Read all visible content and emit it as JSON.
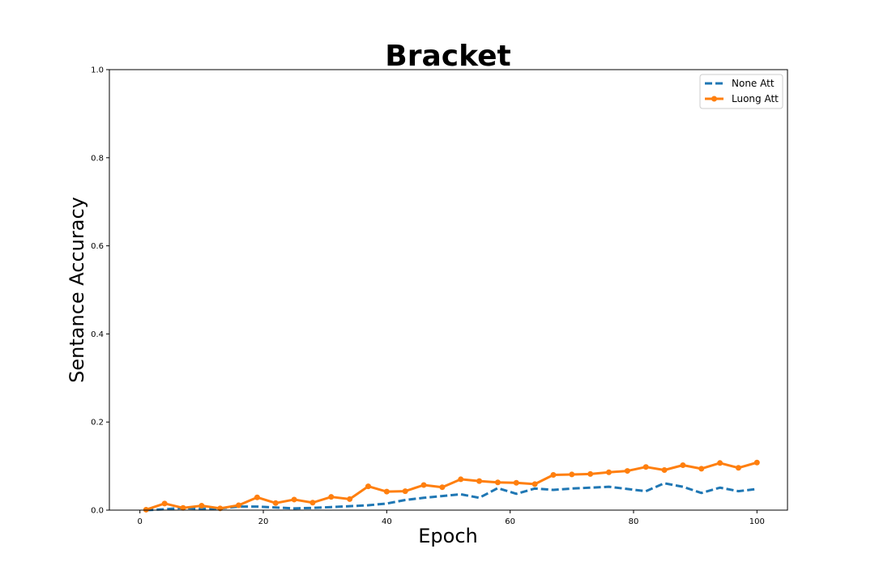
{
  "chart_data": {
    "type": "line",
    "title": "Bracket",
    "xlabel": "Epoch",
    "ylabel": "Sentance Accuracy",
    "xlim": [
      -4.95,
      104.95
    ],
    "ylim": [
      0.0,
      1.0
    ],
    "x_ticks": [
      0,
      20,
      40,
      60,
      80,
      100
    ],
    "y_ticks": [
      0.0,
      0.2,
      0.4,
      0.6,
      0.8,
      1.0
    ],
    "x_tick_labels": [
      "0",
      "20",
      "40",
      "60",
      "80",
      "100"
    ],
    "y_tick_labels": [
      "0.0",
      "0.2",
      "0.4",
      "0.6",
      "0.8",
      "1.0"
    ],
    "grid": false,
    "legend_position": "top-right",
    "x": [
      1,
      4,
      7,
      10,
      13,
      16,
      19,
      22,
      25,
      28,
      31,
      34,
      37,
      40,
      43,
      46,
      49,
      52,
      55,
      58,
      61,
      64,
      67,
      70,
      73,
      76,
      79,
      82,
      85,
      88,
      91,
      94,
      97,
      100
    ],
    "series": [
      {
        "name": "None Att",
        "color": "#1f77b4",
        "style": "dashed",
        "values": [
          0.0,
          0.002,
          0.005,
          0.003,
          0.004,
          0.008,
          0.008,
          0.006,
          0.004,
          0.005,
          0.007,
          0.009,
          0.011,
          0.015,
          0.023,
          0.028,
          0.032,
          0.036,
          0.028,
          0.05,
          0.037,
          0.049,
          0.046,
          0.049,
          0.051,
          0.053,
          0.048,
          0.043,
          0.061,
          0.053,
          0.039,
          0.051,
          0.043,
          0.048
        ]
      },
      {
        "name": "Luong Att",
        "color": "#ff7f0e",
        "style": "solid-marker",
        "values": [
          0.001,
          0.015,
          0.005,
          0.01,
          0.004,
          0.011,
          0.029,
          0.016,
          0.024,
          0.017,
          0.03,
          0.025,
          0.054,
          0.042,
          0.043,
          0.057,
          0.052,
          0.07,
          0.066,
          0.063,
          0.062,
          0.059,
          0.08,
          0.081,
          0.082,
          0.086,
          0.089,
          0.098,
          0.091,
          0.102,
          0.094,
          0.107,
          0.096,
          0.108
        ]
      }
    ]
  }
}
